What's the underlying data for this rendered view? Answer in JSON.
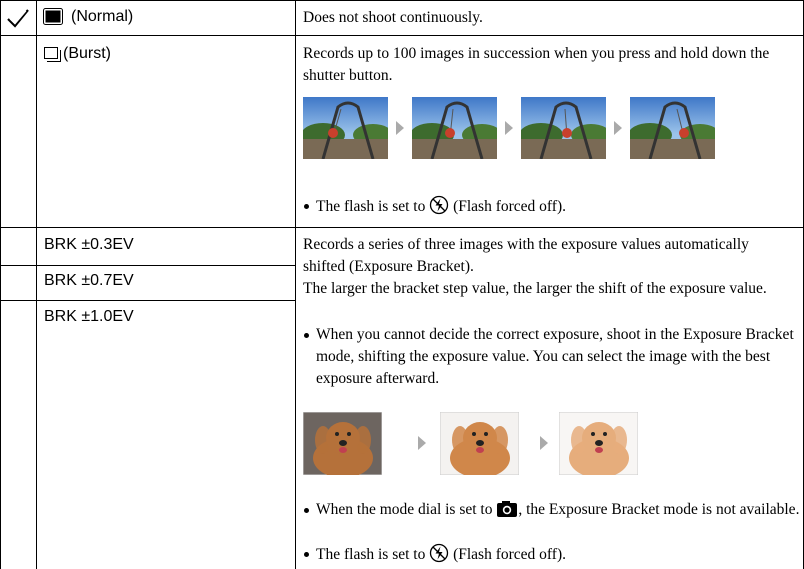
{
  "table": {
    "rows": [
      {
        "mode": "(Normal)",
        "description": [
          "Does not shoot continuously."
        ]
      },
      {
        "mode": "(Burst)",
        "description": [
          "Records up to 100 images in succession when you press and hold down the shutter button."
        ],
        "notes": [
          {
            "before": "The flash is set to",
            "after": "(Flash forced off)."
          }
        ]
      },
      {
        "modes": [
          "BRK ±0.3EV",
          "BRK ±0.7EV",
          "BRK ±1.0EV"
        ],
        "description": [
          "Records a series of three images with the exposure values automatically shifted (Exposure Bracket).",
          "The larger the bracket step value, the larger the shift of the exposure value."
        ],
        "notes": [
          {
            "text": "When you cannot decide the correct exposure, shoot in the Exposure Bracket mode, shifting the exposure value. You can select the image with the best exposure afterward."
          },
          {
            "before": "When the mode dial is set to",
            "after": ", the Exposure Bracket mode is not available."
          },
          {
            "before": "The flash is set to",
            "after": "(Flash forced off)."
          }
        ]
      }
    ]
  }
}
